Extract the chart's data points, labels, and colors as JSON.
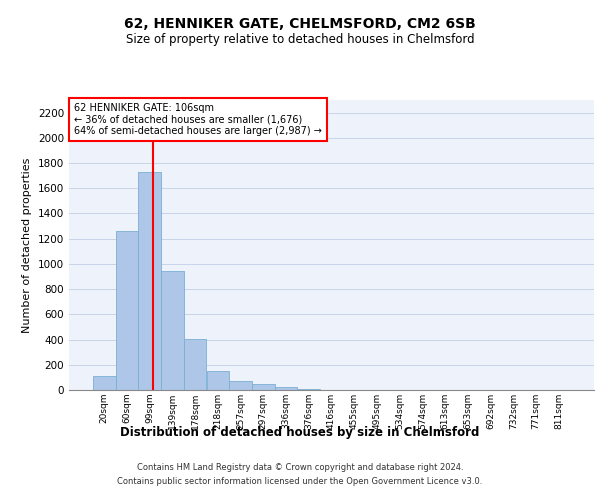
{
  "title": "62, HENNIKER GATE, CHELMSFORD, CM2 6SB",
  "subtitle": "Size of property relative to detached houses in Chelmsford",
  "xlabel_bottom": "Distribution of detached houses by size in Chelmsford",
  "ylabel": "Number of detached properties",
  "categories": [
    "20sqm",
    "60sqm",
    "99sqm",
    "139sqm",
    "178sqm",
    "218sqm",
    "257sqm",
    "297sqm",
    "336sqm",
    "376sqm",
    "416sqm",
    "455sqm",
    "495sqm",
    "534sqm",
    "574sqm",
    "613sqm",
    "653sqm",
    "692sqm",
    "732sqm",
    "771sqm",
    "811sqm"
  ],
  "values": [
    110,
    1260,
    1730,
    940,
    405,
    150,
    75,
    45,
    25,
    5,
    2,
    1,
    1,
    0,
    0,
    0,
    0,
    0,
    0,
    0,
    0
  ],
  "bar_color": "#aec6e8",
  "bar_edge_color": "#7aafd4",
  "grid_color": "#c8d4e8",
  "background_color": "#eef2fb",
  "property_label": "62 HENNIKER GATE: 106sqm",
  "annotation_line1": "← 36% of detached houses are smaller (1,676)",
  "annotation_line2": "64% of semi-detached houses are larger (2,987) →",
  "annotation_box_color": "white",
  "annotation_box_edge": "red",
  "vline_color": "red",
  "vline_x": 2.15,
  "ylim": [
    0,
    2300
  ],
  "yticks": [
    0,
    200,
    400,
    600,
    800,
    1000,
    1200,
    1400,
    1600,
    1800,
    2000,
    2200
  ],
  "footer_line1": "Contains HM Land Registry data © Crown copyright and database right 2024.",
  "footer_line2": "Contains public sector information licensed under the Open Government Licence v3.0."
}
